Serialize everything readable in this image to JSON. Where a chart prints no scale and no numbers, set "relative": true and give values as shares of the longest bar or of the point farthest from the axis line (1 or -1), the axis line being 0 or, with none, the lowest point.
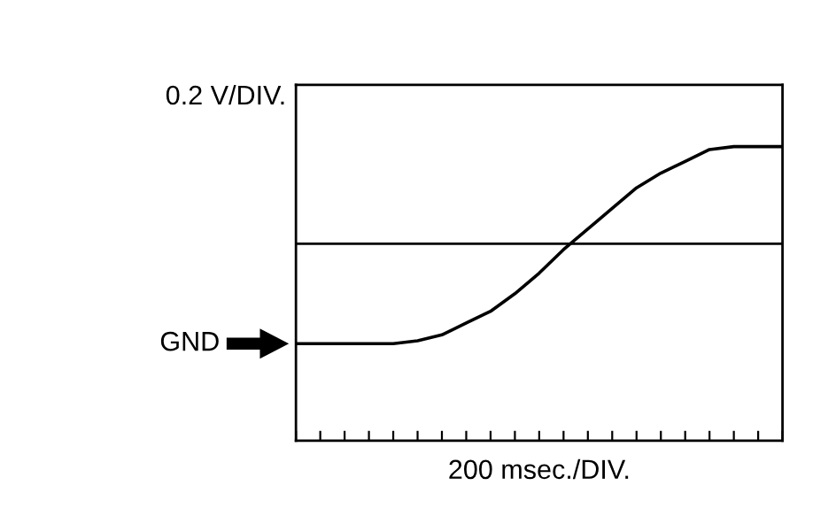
{
  "chart_data": {
    "type": "line",
    "relative": true,
    "ylabel": "0.2 V/DIV.",
    "xlabel": "200 msec./DIV.",
    "categories": [
      null,
      null,
      null,
      null,
      null,
      null,
      null,
      null,
      null,
      null,
      null,
      null,
      null,
      null,
      null,
      null,
      null,
      null,
      null,
      null,
      null
    ],
    "series": [
      {
        "color": "#000000",
        "values": [
          0.33,
          0.33,
          0.33,
          0.33,
          0.33,
          0.34,
          0.36,
          0.4,
          0.44,
          0.5,
          0.57,
          0.65,
          0.72,
          0.79,
          0.86,
          0.91,
          0.95,
          0.99,
          1,
          1,
          1
        ]
      }
    ],
    "annotations": [
      "GND"
    ],
    "ref_lines": [
      {
        "axis": "y",
        "value": 0.67,
        "color": "#000000"
      }
    ],
    "grid": false,
    "legend": false,
    "marker": "none",
    "line_style": "solid"
  }
}
